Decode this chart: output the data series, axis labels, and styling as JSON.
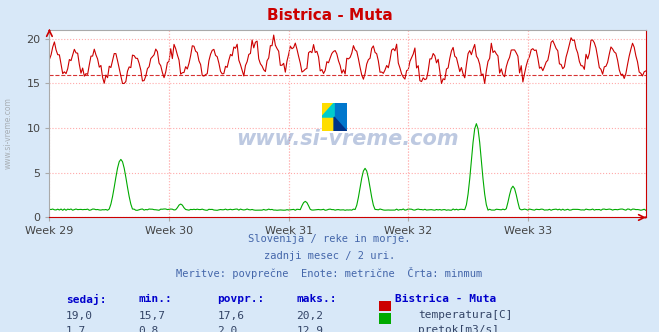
{
  "title": "Bistrica - Muta",
  "title_color": "#cc0000",
  "bg_color": "#d8e8f8",
  "plot_bg_color": "#ffffff",
  "grid_color": "#ffaaaa",
  "xlabel_weeks": [
    "Week 29",
    "Week 30",
    "Week 31",
    "Week 32",
    "Week 33"
  ],
  "ylim": [
    0,
    21
  ],
  "temp_color": "#cc0000",
  "flow_color": "#00aa00",
  "dashed_line_y": 16.0,
  "dashed_line_color": "#cc0000",
  "watermark_text": "www.si-vreme.com",
  "watermark_color": "#4466aa",
  "watermark_alpha": 0.35,
  "subtitle_lines": [
    "Slovenija / reke in morje.",
    "zadnji mesec / 2 uri.",
    "Meritve: povprečne  Enote: metrične  Črta: minmum"
  ],
  "subtitle_color": "#4466aa",
  "table_headers": [
    "sedaj:",
    "min.:",
    "povpr.:",
    "maks.:"
  ],
  "table_row1": [
    "19,0",
    "15,7",
    "17,6",
    "20,2"
  ],
  "table_row2": [
    "1,7",
    "0,8",
    "2,0",
    "12,9"
  ],
  "legend_title": "Bistrica - Muta",
  "legend_label1": "temperatura[C]",
  "legend_label2": "pretok[m3/s]",
  "n_points": 360
}
